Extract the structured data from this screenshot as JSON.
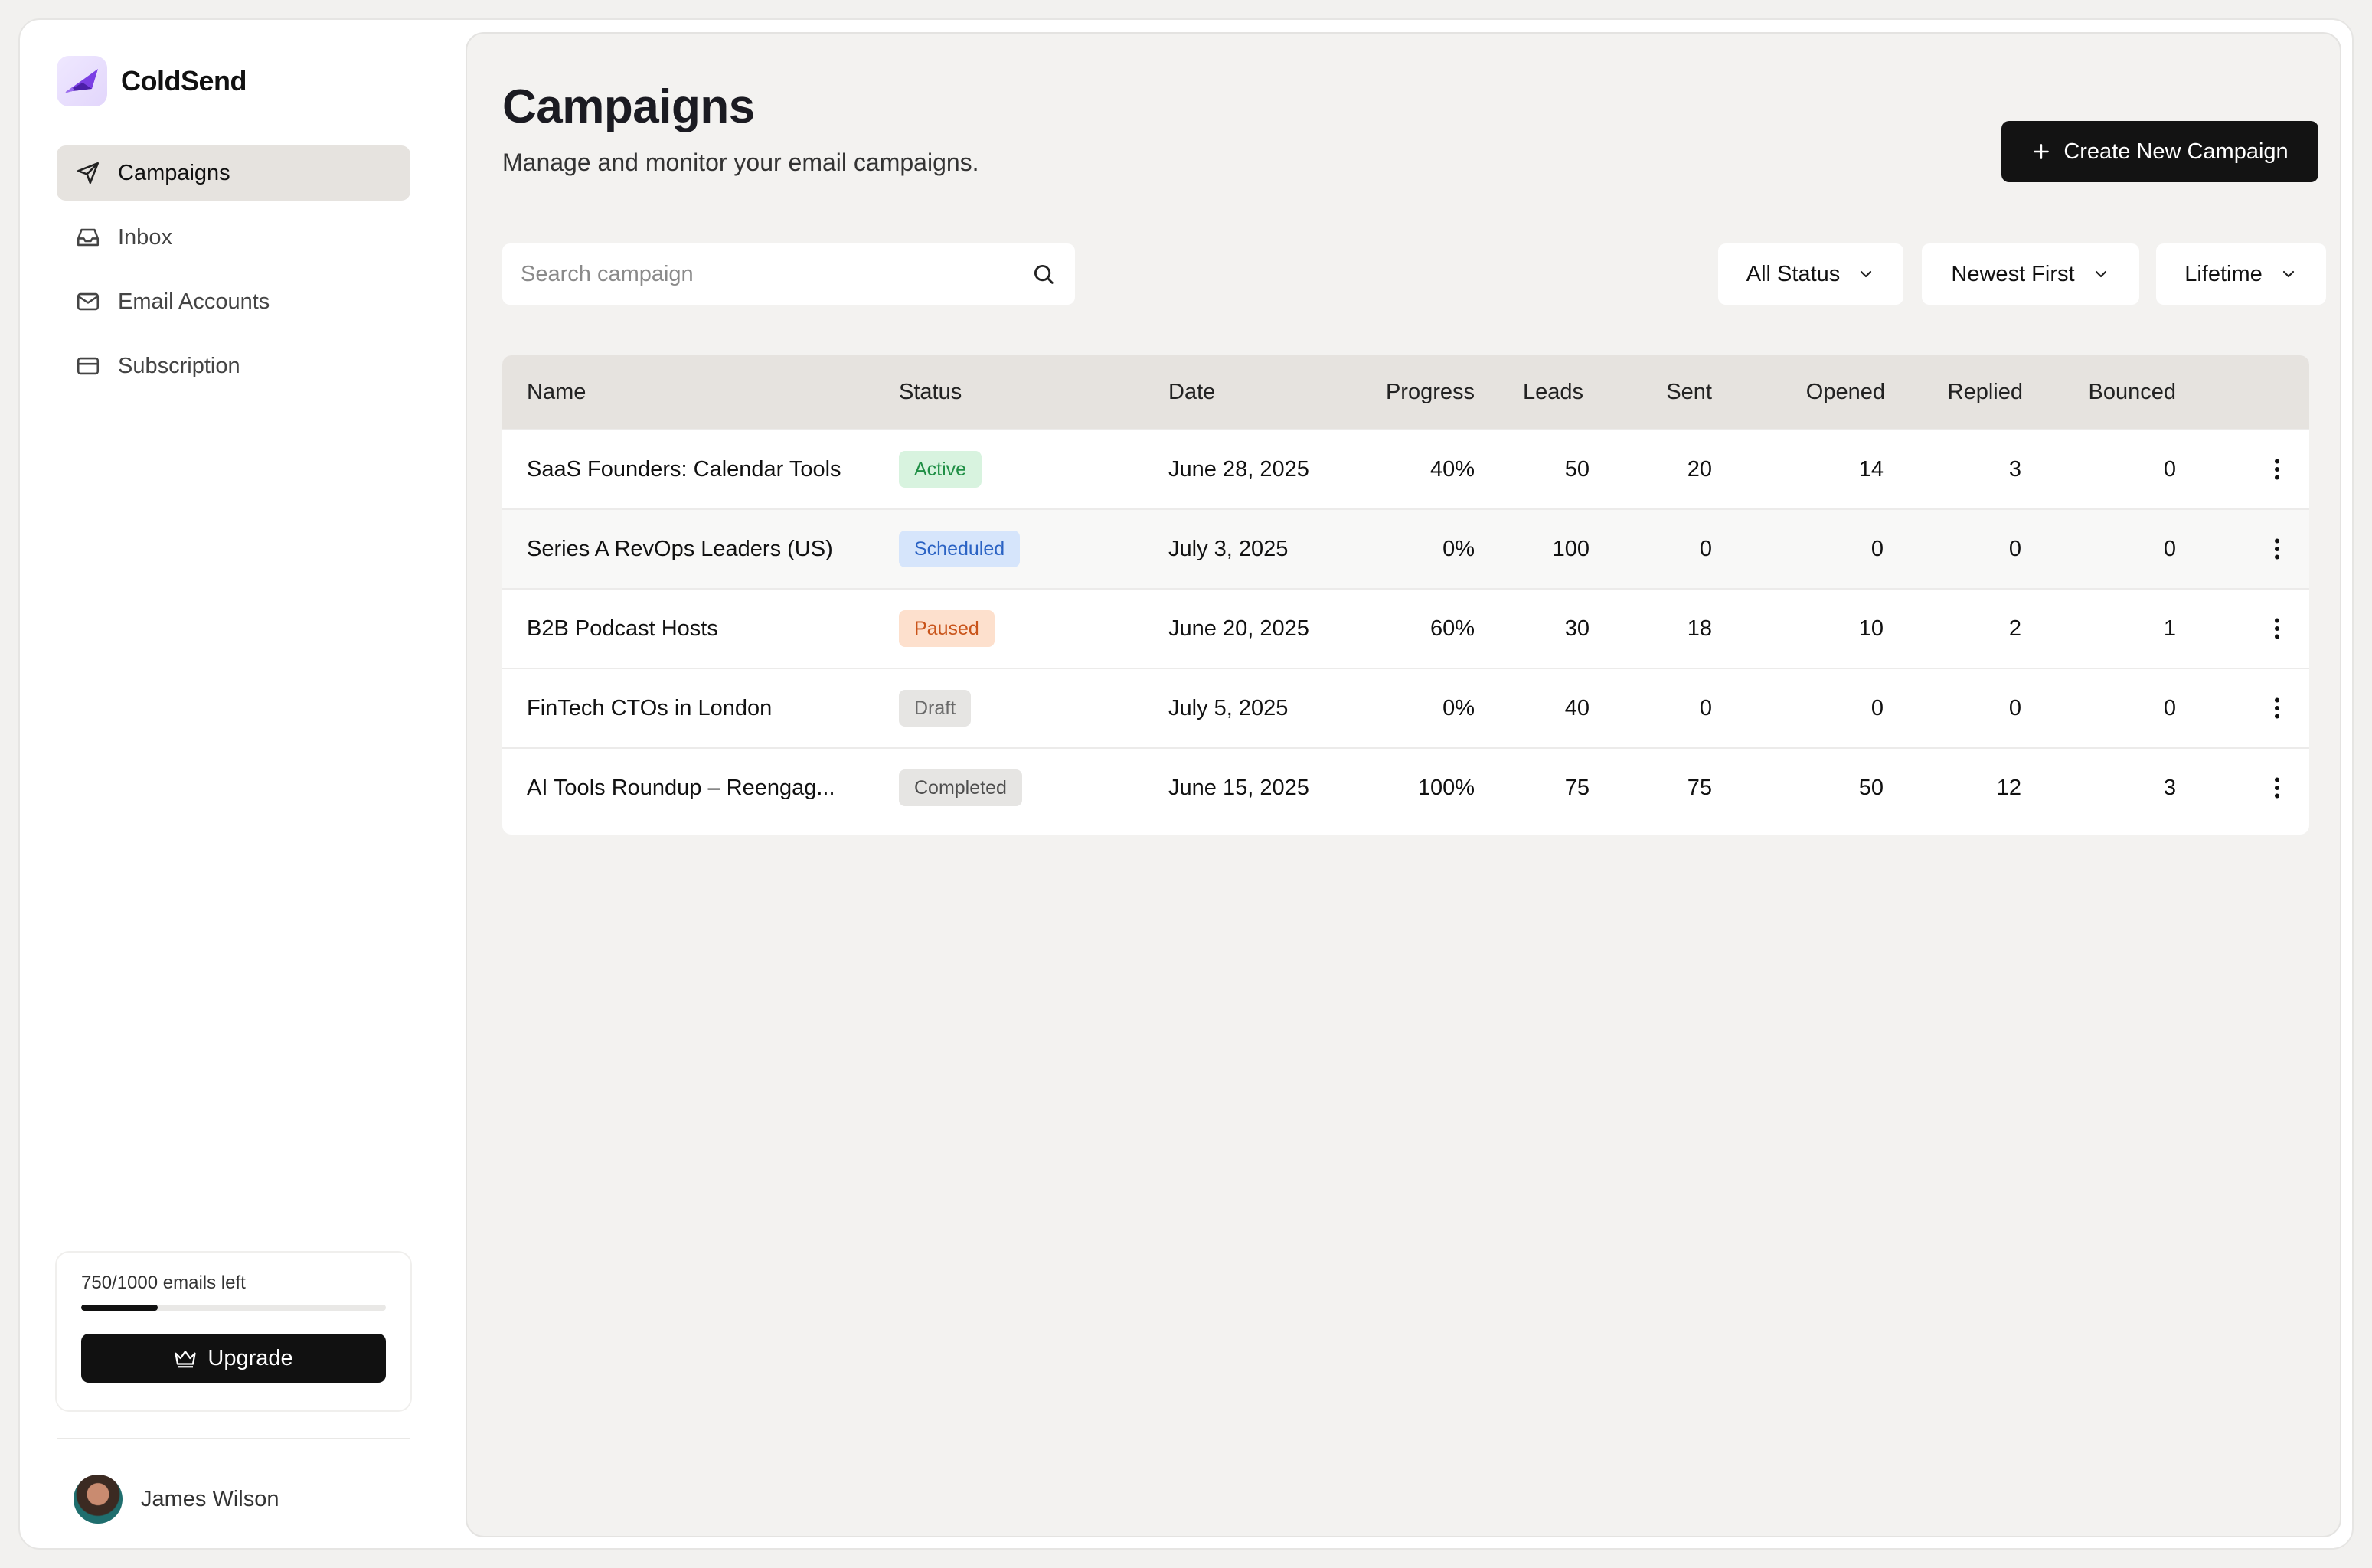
{
  "app": {
    "name": "ColdSend"
  },
  "sidebar": {
    "items": [
      {
        "label": "Campaigns",
        "icon": "send-icon",
        "active": true
      },
      {
        "label": "Inbox",
        "icon": "inbox-icon",
        "active": false
      },
      {
        "label": "Email Accounts",
        "icon": "mail-icon",
        "active": false
      },
      {
        "label": "Subscription",
        "icon": "credit-card-icon",
        "active": false
      }
    ],
    "usage": {
      "text": "750/1000 emails left",
      "progress": 0.25
    },
    "upgrade_label": "Upgrade",
    "user": {
      "name": "James Wilson"
    }
  },
  "header": {
    "title": "Campaigns",
    "subtitle": "Manage and monitor your email campaigns.",
    "create_label": "Create New Campaign"
  },
  "filters": {
    "search_placeholder": "Search campaign",
    "status": "All Status",
    "sort": "Newest First",
    "range": "Lifetime"
  },
  "table": {
    "columns": [
      "Name",
      "Status",
      "Date",
      "Progress",
      "Leads",
      "Sent",
      "Opened",
      "Replied",
      "Bounced"
    ],
    "rows": [
      {
        "name": "SaaS Founders: Calendar Tools",
        "status": "Active",
        "date": "June 28, 2025",
        "progress": "40%",
        "leads": "50",
        "sent": "20",
        "opened": "14",
        "replied": "3",
        "bounced": "0"
      },
      {
        "name": "Series A RevOps Leaders (US)",
        "status": "Scheduled",
        "date": "July 3, 2025",
        "progress": "0%",
        "leads": "100",
        "sent": "0",
        "opened": "0",
        "replied": "0",
        "bounced": "0"
      },
      {
        "name": "B2B Podcast Hosts",
        "status": "Paused",
        "date": "June 20, 2025",
        "progress": "60%",
        "leads": "30",
        "sent": "18",
        "opened": "10",
        "replied": "2",
        "bounced": "1"
      },
      {
        "name": "FinTech CTOs in London",
        "status": "Draft",
        "date": "July 5, 2025",
        "progress": "0%",
        "leads": "40",
        "sent": "0",
        "opened": "0",
        "replied": "0",
        "bounced": "0"
      },
      {
        "name": "AI Tools Roundup – Reengag...",
        "status": "Completed",
        "date": "June 15, 2025",
        "progress": "100%",
        "leads": "75",
        "sent": "75",
        "opened": "50",
        "replied": "12",
        "bounced": "3"
      }
    ]
  },
  "colors": {
    "accent": "#131313",
    "active": "#1f8f45",
    "scheduled": "#2b63c4",
    "paused": "#c9541a",
    "draft": "#6a6a6a",
    "logo": "#6a2bd9"
  }
}
